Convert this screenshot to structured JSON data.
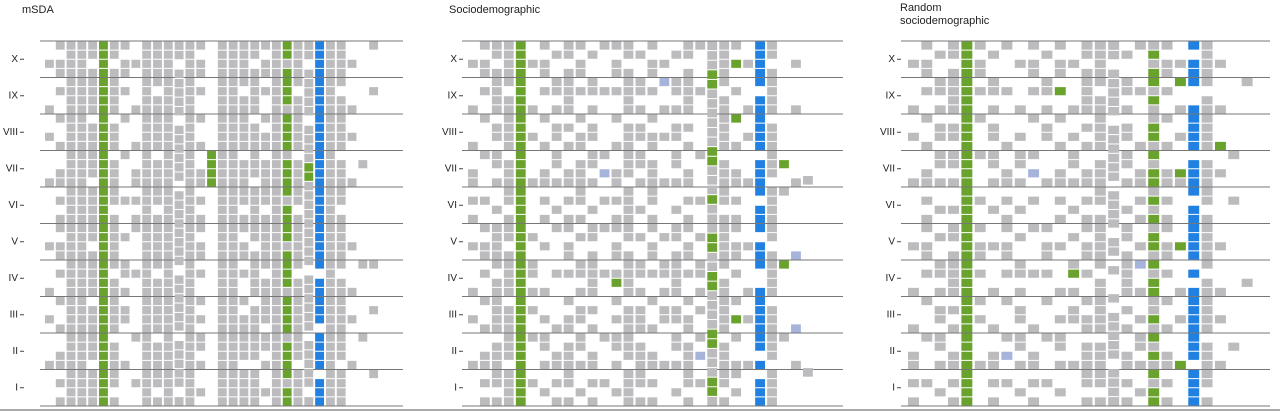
{
  "chart_data": [
    {
      "type": "heatmap",
      "title": "mSDA",
      "categories": [
        "X",
        "IX",
        "VIII",
        "VII",
        "VI",
        "V",
        "IV",
        "III",
        "II",
        "I"
      ],
      "colors": {
        "g": "#bcbcbf",
        "G": "#69a22c",
        "b": "#2180e0",
        "p": "#a6b4dc"
      },
      "columns": [
        "..g....g..g....g......g....g..g....g....",
        "g.gg.g..g..g..gg.g.gg.gg.g..g..g..gg.g.g",
        "gggggggggggggggggggggggggggggggggggggggg",
        "gggggggggggggggggggggggggggggggggggggggg",
        "gg.ggggg.gggggg.gggggg.ggggg.gggggg.gggg",
        "GGGGGGGGGGGGGGGGGGGGGGGGGGGGGGGGGGGGGGGG",
        "gg.ggggg.ggg.ggggg.gggggg.gggggg.ggggg.g",
        "g.gg.g..g...g....g...g..gg.g.gg....g....",
        "..g....g...g..gg.g.gg....g......g....g..",
        "gggggggggggggggggggggggggggggggggggggggg",
        "ggggg.gggggg.ggggg.gggggg.gggggg.ggggg.g",
        "gggggggggggggggggggggggggggggggggggggggg",
        "gg.ggggg.gggggg.gggggggg.gggggg.ggggg.g",
        "gggggggggggggggggggggggggggggggggggggggg",
        "g.gg.g..g..g..gg.g.gg.gg.g..g.g.gg.g..g.",
        "............GGGG........................",
        "gggggggggggggggggggggggggggggggggggggggg",
        "gggggggggggggggggggggggggggggggggggggggg",
        "ggggg.gggggg.ggggg.gg.gg.g..g.ggggg.gggg",
        "gg.ggggg.gggggg.gggggg.ggggg.gggggg.gggg",
        "g.gg.g..g.gg.ggggg.gggggg.ggggg.gg.g..g.",
        "gggggggggggggggggggggggggggggggggggggggg",
        "GGgGGGGgGGGGgGGGGgGGGGgGGGGgGGGGgGGGGgGG",
        "ggggg.gggggg.ggggg.gggggg.ggggggggg.gggg",
        "gg.ggggg.ggggGGggggggggg.gggggg.ggggg.g",
        "bbbbbbbbbbbbbbbbbbbbbbbbb.bbbbb.bbbb.bbb",
        "gggggggggggggggggggggggggggggggggggggggg",
        "ggggg.gggggg.ggggg.gggggg.ggggggggg.gggg",
        "..g....g..g....g......g....g..g....g....",
        ".............g..........g.......g.......",
        "g....g..................g....g......g..."
      ]
    },
    {
      "type": "heatmap",
      "title": "Sociodemographic",
      "categories": [
        "X",
        "IX",
        "VIII",
        "VII",
        "VI",
        "V",
        "IV",
        "III",
        "II",
        "I"
      ],
      "colors": {
        "g": "#bcbcbf",
        "G": "#69a22c",
        "b": "#2180e0",
        "p": "#a6b4dc"
      },
      "columns": [
        "..g....g...g..gg.g.g..g....g..g....g....",
        "g.gg.g..g...g....g..g.gg.g..g..g..gg.g.g",
        "gg.ggggg.gg.gg.g..g.ggggg.gggggg.ggggg.g",
        "ggggg.gggggg.ggggg.ggg.ggggg.gggggg.gggg",
        "GGGGGGGGGGGGGGGGGGGGGGGGGGGGGGGGGGGGGGGG",
        "..g....g..g....g.....g..gg.g.g..g....g..",
        "g.gg.g..g..g..gg.g.g..g....g..g.gg.g..g.",
        ".g..gg.g.gg.gg.g..g.g....g.....g..gg.g.g",
        "gg.ggggg.g.g..gg.g.gg.gg.g..g.gg.ggggg.g",
        "g.gg.g..g.gg.ggggg.g.g..gg.g.gg.gg.g..g.",
        ".g..gg.g.gg.gg.g..g.gg.ggggg.g.g..gg.g.g",
        "g....g......g.p..g..g....g......g....g..",
        "g.gg.g..g..g..gg.g.gg.gg.gG.g.g.gg.g..g.",
        "gg.ggggg.gggggg.gggggg.ggggg.gggggg.gggg",
        ".g..gg.g.gg.gg.g..g..g..gg.g.ggg.ggggg.g",
        "g.gg.g..g.gg.ggggg.gg.gg.g..g..g..gg.g.g",
        "..g.p..g..g....g.....g..gg.g.gg....g....",
        ".g..gg.g.gg.gg.g..g.gg.ggggg.gg.gg.g..g.",
        "gg.ggggg.g.g..gg.g.gg.gg.g..g.gg.ggggg.g",
        "g....g......g....g...g..gg.g.g..g.p..g..",
        "gggGGggggggGGgggGgggGGggGGggggGGgggGGg",
        "ggggg.gggggg.ggggg.gggggg.gggggg.ggggg.g",
        "g.G..g..G..g..gg.g.gg.gg.g..g.G.g..gg.g.",
        "..g....g..g....g......g....g..g....g....",
        "bbbbb.bbbbbb.bbbb.bbb.bbb..bbbbbbb.b.bbb",
        "gg.ggggg.gggggg.gggggg.ggggg.gggggg.gggg",
        ".............G..g.......G.......g.......",
        "..g....g.......g.......p.......p...g....",
        "..............g...................g..."
      ]
    },
    {
      "type": "heatmap",
      "title": "Random sociodemographic",
      "title_lines": [
        "Random",
        "sociodemographic"
      ],
      "categories": [
        "X",
        "IX",
        "VIII",
        "VII",
        "VI",
        "V",
        "IV",
        "III",
        "II",
        "I"
      ],
      "colors": {
        "g": "#bcbcbf",
        "G": "#69a22c",
        "b": "#2180e0",
        "p": "#a6b4dc"
      },
      "columns": [
        "..g....g..g....g......g....g...g..gg.g.g",
        "g.gg.g..g..g..gg.g.gg.gg.g..g...g....g..",
        ".g..gg.g.gg.gg.g..g..g..gg.g.gg.gg.g..g.",
        "gg.ggggg.gg.gg.g..g.gg.ggggg.g.g..gg.g.g",
        "GGGGGGGGGGGGGGGGGGGGGGGGGGGGGGGGGGGGGGGG",
        "g.gg.g..g...g....g..g.gg.g..g.g....g....",
        ".g..gg.g.gg.gg.g..g...g....g...g..gg.g.g",
        "g....g.....g..gg.g.gg.gg.g..g...g.p..g..",
        "..g....g..g.gg.g..g..g..gg.g.gg.gg.g..g.",
        "g.gg.g..g...g.p..g..g....g.....g..gg.g.g",
        ".g..gg.g.gg....g....g.gg.g..g...g....g..",
        "g.gg.G..g..g..gg.g.g..g....g..g.gg.g..g.",
        "..g....g..g.gg.g..g..g..gG.g.gg....g....",
        "gg.ggggg.g.g..gg.g.gg.gg.g..g.gg.ggggg.g",
        "ggggg.gggggg.ggggg.gggggg.gggggg.ggggg.g",
        "gg.ggggg.gggggg.gggg.gg.g..g.ggggg.gggg",
        ".g..gg.g.gg.gg.g..g.gg.ggggg.g.g..gg.g.g",
        "g....g.....g..gg.g.g..g.p..g..g.gg.g..g.",
        "gGgGGgGggGGgGgGGgGgGgGGgGgGGggGgGgGgGgGG",
        "g.gg.g..g..g..gg.g.gg.gg.g..g..g..gg.g.g",
        "..g.G..g..g...Gg......G....g..g....G....",
        "b.bbb..bbbbb.bbbb.bbbbbb.b.bbbbbbbb.bbbb",
        "ggggg.gggggg.ggggg.gggggg.gggggg.ggggg.g",
        "..g....g...G..g.......g....g..g....g....",
        "............g....g...............g......",
        "....g.....................g............."
      ]
    }
  ]
}
